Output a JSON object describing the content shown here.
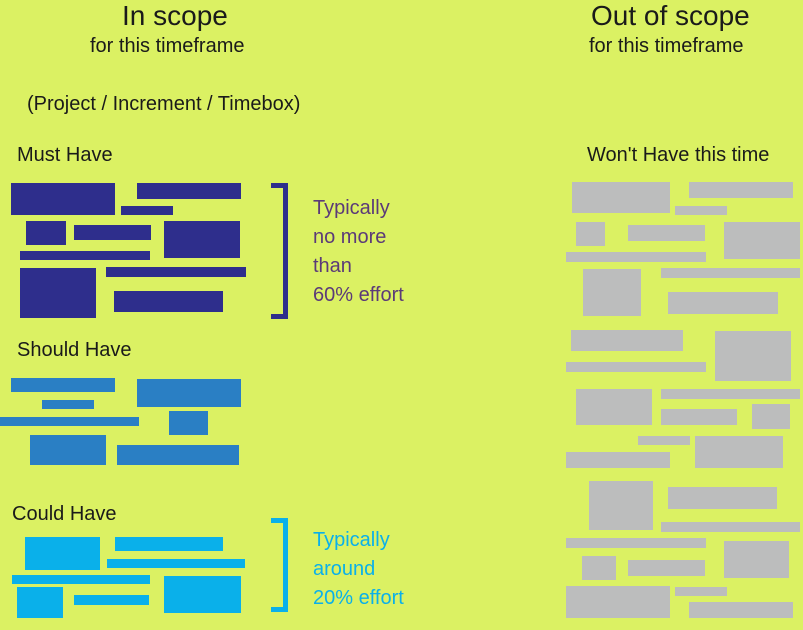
{
  "in_scope": {
    "title": "In scope",
    "subtitle": "for this timeframe",
    "scope_note": "(Project / Increment / Timebox)"
  },
  "out_of_scope": {
    "title": "Out of scope",
    "subtitle": "for this timeframe",
    "label": "Won't Have this time",
    "color": "#bcbdbd"
  },
  "must_have": {
    "label": "Must Have",
    "color": "#2e2e8c",
    "note": [
      "Typically",
      "no more",
      "than",
      "60% effort"
    ],
    "note_color": "#5b3a78"
  },
  "should_have": {
    "label": "Should Have",
    "color": "#2a7fc4"
  },
  "could_have": {
    "label": "Could Have",
    "color": "#0ab0ea",
    "note": [
      "Typically",
      "around",
      "20% effort"
    ],
    "note_color": "#0ab0ea"
  }
}
